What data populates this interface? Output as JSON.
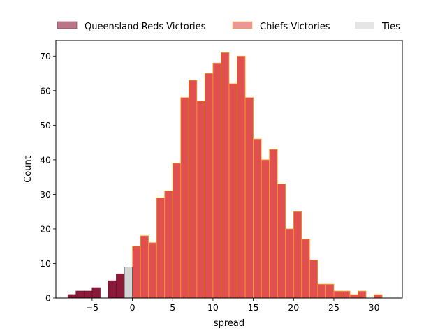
{
  "chart_data": {
    "type": "bar",
    "xlabel": "spread",
    "ylabel": "Count",
    "xlim": [
      -9.5,
      33.5
    ],
    "ylim": [
      0,
      74.5
    ],
    "x_ticks": [
      -5,
      0,
      5,
      10,
      15,
      20,
      25,
      30
    ],
    "y_ticks": [
      0,
      10,
      20,
      30,
      40,
      50,
      60,
      70
    ],
    "x_tick_labels": [
      "−5",
      "0",
      "5",
      "10",
      "15",
      "20",
      "25",
      "30"
    ],
    "y_tick_labels": [
      "0",
      "10",
      "20",
      "30",
      "40",
      "50",
      "60",
      "70"
    ],
    "bin_width": 1,
    "legend_position": "top",
    "series": [
      {
        "name": "Queensland Reds Victories",
        "color": "#8b1a3a",
        "edge_color": "#6b1030",
        "bins": [
          {
            "x": -7.5,
            "count": 1
          },
          {
            "x": -6.5,
            "count": 2
          },
          {
            "x": -5.5,
            "count": 2
          },
          {
            "x": -4.5,
            "count": 3
          },
          {
            "x": -2.5,
            "count": 5
          },
          {
            "x": -1.5,
            "count": 7
          }
        ]
      },
      {
        "name": "Chiefs Victories",
        "color": "#e0504e",
        "edge_color": "#f5a623",
        "bins": [
          {
            "x": 0.5,
            "count": 15
          },
          {
            "x": 1.5,
            "count": 18
          },
          {
            "x": 2.5,
            "count": 16
          },
          {
            "x": 3.5,
            "count": 29
          },
          {
            "x": 4.5,
            "count": 31
          },
          {
            "x": 5.5,
            "count": 39
          },
          {
            "x": 6.5,
            "count": 58
          },
          {
            "x": 7.5,
            "count": 63
          },
          {
            "x": 8.5,
            "count": 57
          },
          {
            "x": 9.5,
            "count": 65
          },
          {
            "x": 10.5,
            "count": 68
          },
          {
            "x": 11.5,
            "count": 71
          },
          {
            "x": 12.5,
            "count": 62
          },
          {
            "x": 13.5,
            "count": 70
          },
          {
            "x": 14.5,
            "count": 58
          },
          {
            "x": 15.5,
            "count": 46
          },
          {
            "x": 16.5,
            "count": 40
          },
          {
            "x": 17.5,
            "count": 43
          },
          {
            "x": 18.5,
            "count": 33
          },
          {
            "x": 19.5,
            "count": 20
          },
          {
            "x": 20.5,
            "count": 25
          },
          {
            "x": 21.5,
            "count": 17
          },
          {
            "x": 22.5,
            "count": 11
          },
          {
            "x": 23.5,
            "count": 4
          },
          {
            "x": 24.5,
            "count": 4
          },
          {
            "x": 25.5,
            "count": 2
          },
          {
            "x": 26.5,
            "count": 2
          },
          {
            "x": 27.5,
            "count": 1
          },
          {
            "x": 28.5,
            "count": 2
          },
          {
            "x": 30.5,
            "count": 1
          }
        ]
      },
      {
        "name": "Ties",
        "color": "#d4d4d4",
        "edge_color": "#444444",
        "bins": [
          {
            "x": -0.5,
            "count": 9
          }
        ]
      }
    ]
  }
}
